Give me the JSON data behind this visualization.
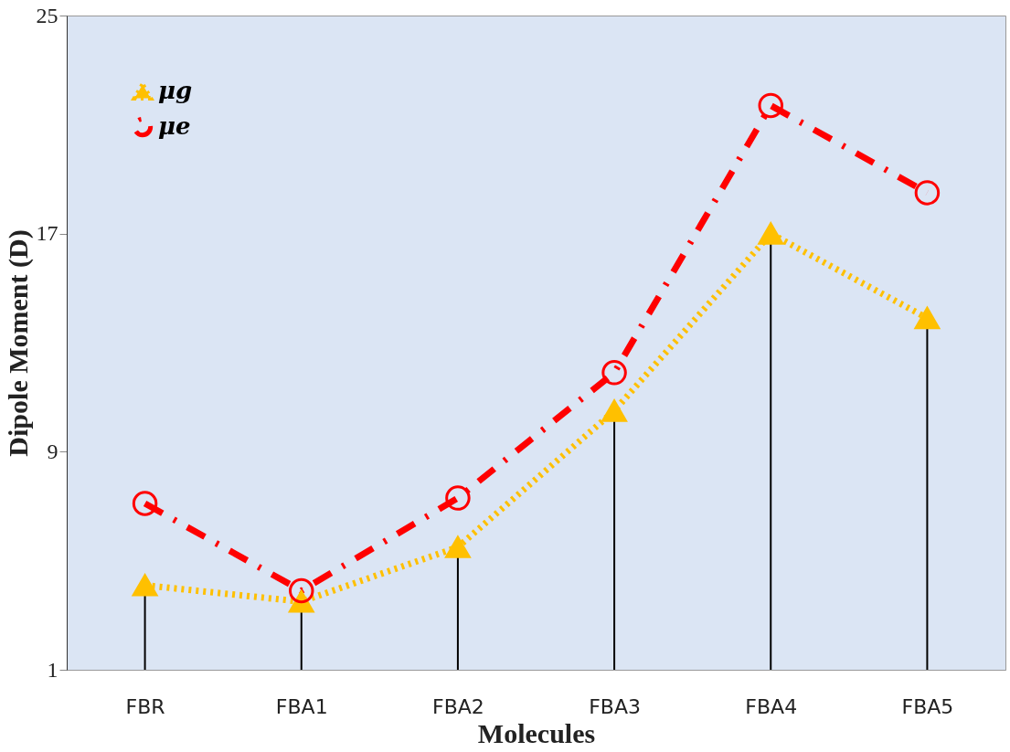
{
  "chart_data": {
    "type": "line",
    "xlabel": "Molecules",
    "ylabel": "Dipole Moment (D)",
    "categories": [
      "FBR",
      "FBA1",
      "FBA2",
      "FBA3",
      "FBA4",
      "FBA5"
    ],
    "series": [
      {
        "name": "μg",
        "color": "#ffc000",
        "marker": "triangle",
        "line_style": "dotted",
        "values": [
          4.1,
          3.5,
          5.5,
          10.5,
          17.0,
          13.9
        ],
        "errors": [
          [
            1,
            4.1
          ],
          [
            1,
            3.5
          ],
          [
            1,
            5.5
          ],
          [
            1,
            10.5
          ],
          [
            1,
            17.0
          ],
          [
            1,
            13.9
          ]
        ]
      },
      {
        "name": "μe",
        "color": "#ff0000",
        "marker": "circle",
        "line_style": "dashdot",
        "values": [
          7.1,
          3.9,
          7.3,
          11.9,
          21.7,
          18.5
        ]
      }
    ],
    "ylim": [
      1,
      25
    ],
    "yticks": [
      1,
      9,
      17,
      25
    ],
    "grid": false,
    "legend": "top left"
  }
}
